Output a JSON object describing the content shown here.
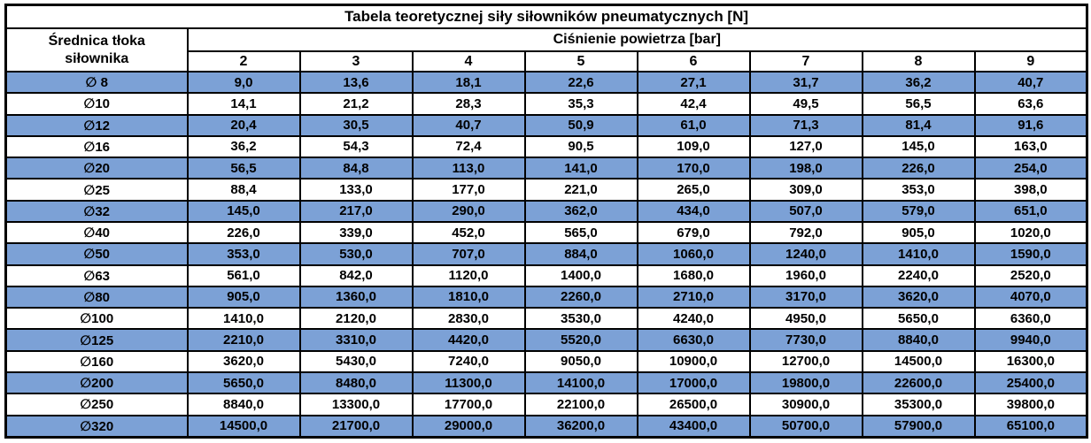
{
  "table": {
    "title": "Tabela teoretycznej siły siłowników pneumatycznych [N]",
    "row_header": {
      "line1": "Średnica tłoka",
      "line2": "siłownika"
    },
    "col_group_header": "Ciśnienie powietrza [bar]",
    "pressures": [
      "2",
      "3",
      "4",
      "5",
      "6",
      "7",
      "8",
      "9"
    ],
    "rows": [
      {
        "diameter": "∅ 8",
        "values": [
          "9,0",
          "13,6",
          "18,1",
          "22,6",
          "27,1",
          "31,7",
          "36,2",
          "40,7"
        ]
      },
      {
        "diameter": "∅10",
        "values": [
          "14,1",
          "21,2",
          "28,3",
          "35,3",
          "42,4",
          "49,5",
          "56,5",
          "63,6"
        ]
      },
      {
        "diameter": "∅12",
        "values": [
          "20,4",
          "30,5",
          "40,7",
          "50,9",
          "61,0",
          "71,3",
          "81,4",
          "91,6"
        ]
      },
      {
        "diameter": "∅16",
        "values": [
          "36,2",
          "54,3",
          "72,4",
          "90,5",
          "109,0",
          "127,0",
          "145,0",
          "163,0"
        ]
      },
      {
        "diameter": "∅20",
        "values": [
          "56,5",
          "84,8",
          "113,0",
          "141,0",
          "170,0",
          "198,0",
          "226,0",
          "254,0"
        ]
      },
      {
        "diameter": "∅25",
        "values": [
          "88,4",
          "133,0",
          "177,0",
          "221,0",
          "265,0",
          "309,0",
          "353,0",
          "398,0"
        ]
      },
      {
        "diameter": "∅32",
        "values": [
          "145,0",
          "217,0",
          "290,0",
          "362,0",
          "434,0",
          "507,0",
          "579,0",
          "651,0"
        ]
      },
      {
        "diameter": "∅40",
        "values": [
          "226,0",
          "339,0",
          "452,0",
          "565,0",
          "679,0",
          "792,0",
          "905,0",
          "1020,0"
        ]
      },
      {
        "diameter": "∅50",
        "values": [
          "353,0",
          "530,0",
          "707,0",
          "884,0",
          "1060,0",
          "1240,0",
          "1410,0",
          "1590,0"
        ]
      },
      {
        "diameter": "∅63",
        "values": [
          "561,0",
          "842,0",
          "1120,0",
          "1400,0",
          "1680,0",
          "1960,0",
          "2240,0",
          "2520,0"
        ]
      },
      {
        "diameter": "∅80",
        "values": [
          "905,0",
          "1360,0",
          "1810,0",
          "2260,0",
          "2710,0",
          "3170,0",
          "3620,0",
          "4070,0"
        ]
      },
      {
        "diameter": "∅100",
        "values": [
          "1410,0",
          "2120,0",
          "2830,0",
          "3530,0",
          "4240,0",
          "4950,0",
          "5650,0",
          "6360,0"
        ]
      },
      {
        "diameter": "∅125",
        "values": [
          "2210,0",
          "3310,0",
          "4420,0",
          "5520,0",
          "6630,0",
          "7730,0",
          "8840,0",
          "9940,0"
        ]
      },
      {
        "diameter": "∅160",
        "values": [
          "3620,0",
          "5430,0",
          "7240,0",
          "9050,0",
          "10900,0",
          "12700,0",
          "14500,0",
          "16300,0"
        ]
      },
      {
        "diameter": "∅200",
        "values": [
          "5650,0",
          "8480,0",
          "11300,0",
          "14100,0",
          "17000,0",
          "19800,0",
          "22600,0",
          "25400,0"
        ]
      },
      {
        "diameter": "∅250",
        "values": [
          "8840,0",
          "13300,0",
          "17700,0",
          "22100,0",
          "26500,0",
          "30900,0",
          "35300,0",
          "39800,0"
        ]
      },
      {
        "diameter": "∅320",
        "values": [
          "14500,0",
          "21700,0",
          "29000,0",
          "36200,0",
          "43400,0",
          "50700,0",
          "57900,0",
          "65100,0"
        ]
      }
    ]
  },
  "chart_data": {
    "type": "table",
    "title": "Tabela teoretycznej siły siłowników pneumatycznych [N]",
    "column_group_label": "Ciśnienie powietrza [bar]",
    "row_label": "Średnica tłoka siłownika",
    "columns": [
      "2",
      "3",
      "4",
      "5",
      "6",
      "7",
      "8",
      "9"
    ],
    "row_categories": [
      "∅ 8",
      "∅10",
      "∅12",
      "∅16",
      "∅20",
      "∅25",
      "∅32",
      "∅40",
      "∅50",
      "∅63",
      "∅80",
      "∅100",
      "∅125",
      "∅160",
      "∅200",
      "∅250",
      "∅320"
    ]
  },
  "colors": {
    "band_blue": "#7CA1D6",
    "band_white": "#FFFFFF",
    "border": "#000000",
    "text": "#000000",
    "background": "#FFFFFF"
  }
}
